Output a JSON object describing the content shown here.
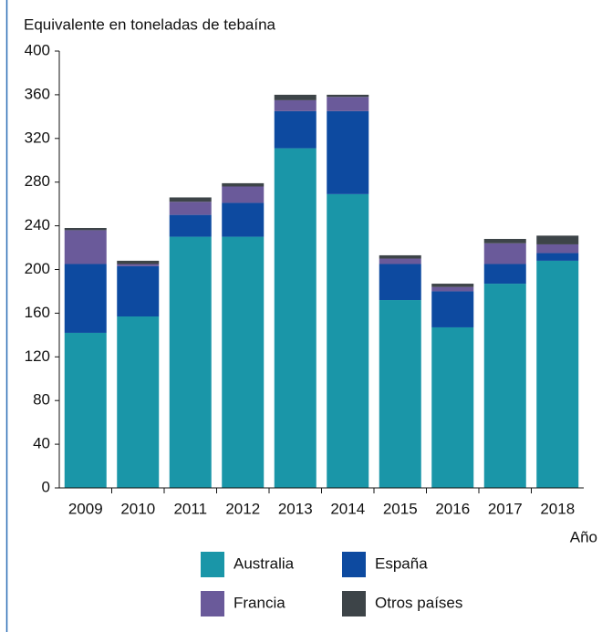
{
  "chart_data": {
    "type": "stacked_bar",
    "y_axis_label": "Equivalente en toneladas de tebaína",
    "x_axis_label": "Año",
    "categories": [
      "2009",
      "2010",
      "2011",
      "2012",
      "2013",
      "2014",
      "2015",
      "2016",
      "2017",
      "2018"
    ],
    "series": [
      {
        "name": "Australia",
        "color": "#1a96a8",
        "values": [
          142,
          157,
          230,
          230,
          311,
          269,
          172,
          147,
          187,
          208
        ]
      },
      {
        "name": "España",
        "color": "#0d4aa0",
        "values": [
          63,
          46,
          20,
          31,
          34,
          76,
          33,
          33,
          18,
          7
        ]
      },
      {
        "name": "Francia",
        "color": "#6a5a9a",
        "values": [
          31,
          2,
          12,
          15,
          10,
          13,
          5,
          4,
          19,
          8
        ]
      },
      {
        "name": "Otros países",
        "color": "#3d4448",
        "values": [
          2,
          3,
          4,
          3,
          5,
          2,
          3,
          3,
          4,
          8
        ]
      }
    ],
    "ylim": [
      0,
      400
    ],
    "yticks": [
      0,
      40,
      80,
      120,
      160,
      200,
      240,
      280,
      320,
      360,
      400
    ]
  }
}
